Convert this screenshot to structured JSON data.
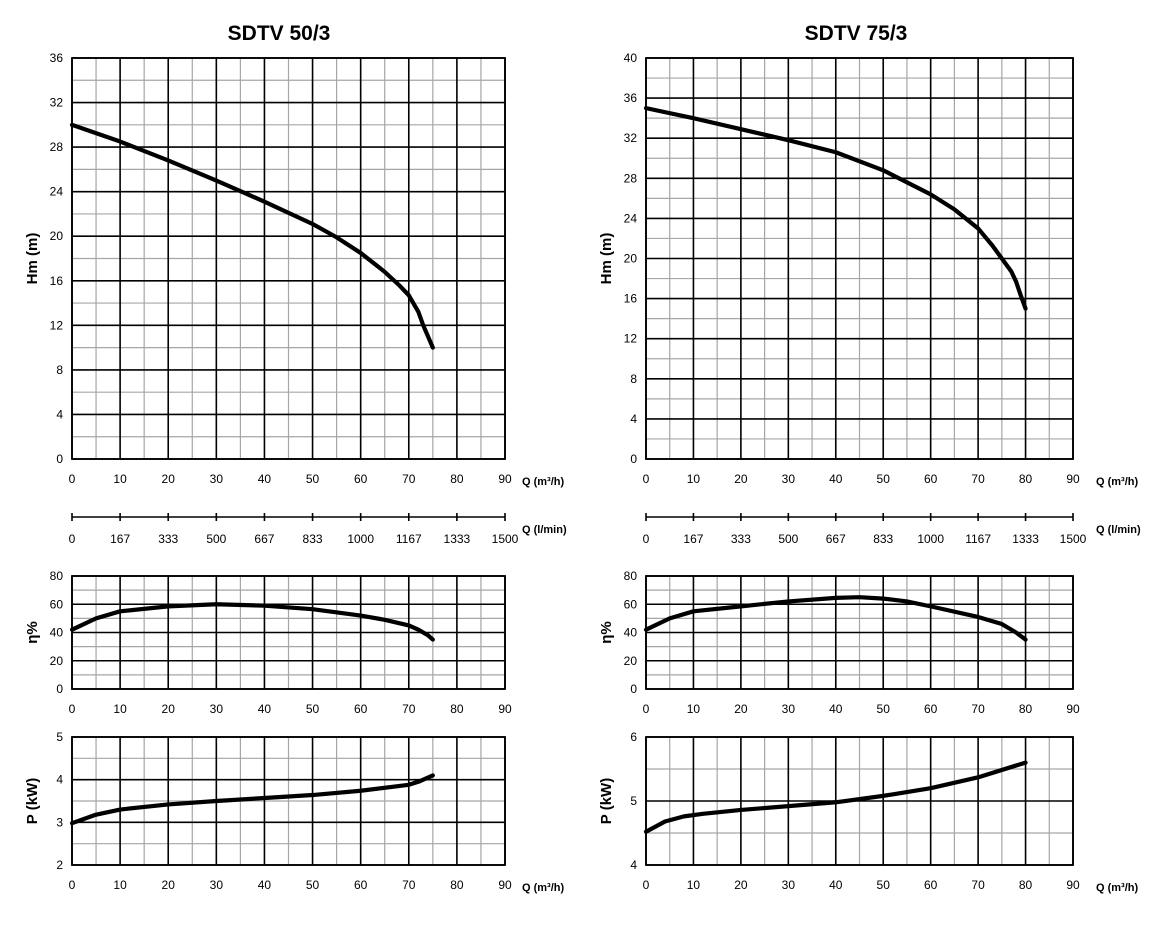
{
  "chart_data": [
    {
      "type": "line",
      "title": "SDTV 50/3",
      "panels": [
        {
          "id": "head",
          "ylabel": "Hm   (m)",
          "xlabel": "Q (m³/h)",
          "xlim": [
            0,
            90
          ],
          "ylim": [
            0,
            36
          ],
          "x_ticks": [
            "0",
            "10",
            "20",
            "30",
            "40",
            "50",
            "60",
            "70",
            "80",
            "90"
          ],
          "y_ticks": [
            "0",
            "4",
            "8",
            "12",
            "16",
            "20",
            "24",
            "28",
            "32",
            "36"
          ],
          "grid": true,
          "x": [
            0,
            10,
            20,
            30,
            40,
            50,
            55,
            60,
            65,
            68,
            70,
            72,
            73,
            74,
            75
          ],
          "y": [
            30,
            28.5,
            26.8,
            25,
            23.1,
            21.1,
            19.9,
            18.5,
            16.8,
            15.6,
            14.7,
            13.2,
            12,
            11,
            10
          ]
        },
        {
          "id": "flow-lmin",
          "xlabel": "Q (l/min)",
          "x_ticks": [
            "0",
            "167",
            "333",
            "500",
            "667",
            "833",
            "1000",
            "1167",
            "1333",
            "1500"
          ]
        },
        {
          "id": "efficiency",
          "ylabel": "η%",
          "xlim": [
            0,
            90
          ],
          "ylim": [
            0,
            80
          ],
          "x_ticks": [
            "0",
            "10",
            "20",
            "30",
            "40",
            "50",
            "60",
            "70",
            "80",
            "90"
          ],
          "y_ticks": [
            "0",
            "20",
            "40",
            "60",
            "80"
          ],
          "grid": true,
          "x": [
            0,
            5,
            10,
            20,
            30,
            40,
            50,
            60,
            65,
            70,
            72,
            74,
            75
          ],
          "y": [
            42,
            50,
            55,
            58.5,
            60,
            59,
            56.5,
            52,
            49,
            45,
            42,
            38,
            35
          ]
        },
        {
          "id": "power",
          "ylabel": "P   (kW)",
          "xlabel": "Q (m³/h)",
          "xlim": [
            0,
            90
          ],
          "ylim": [
            2,
            5
          ],
          "x_ticks": [
            "0",
            "10",
            "20",
            "30",
            "40",
            "50",
            "60",
            "70",
            "80",
            "90"
          ],
          "y_ticks": [
            "2",
            "3",
            "4",
            "5"
          ],
          "grid": true,
          "x": [
            0,
            5,
            10,
            20,
            30,
            40,
            50,
            60,
            70,
            72,
            74,
            75
          ],
          "y": [
            2.98,
            3.18,
            3.3,
            3.42,
            3.5,
            3.57,
            3.64,
            3.74,
            3.88,
            3.95,
            4.05,
            4.1
          ]
        }
      ]
    },
    {
      "type": "line",
      "title": "SDTV 75/3",
      "panels": [
        {
          "id": "head",
          "ylabel": "Hm   (m)",
          "xlabel": "Q (m³/h)",
          "xlim": [
            0,
            90
          ],
          "ylim": [
            0,
            40
          ],
          "x_ticks": [
            "0",
            "10",
            "20",
            "30",
            "40",
            "50",
            "60",
            "70",
            "80",
            "90"
          ],
          "y_ticks": [
            "0",
            "4",
            "8",
            "12",
            "16",
            "20",
            "24",
            "28",
            "32",
            "36",
            "40"
          ],
          "grid": true,
          "x": [
            0,
            10,
            20,
            30,
            40,
            50,
            60,
            65,
            70,
            73,
            75,
            77,
            78,
            79,
            80
          ],
          "y": [
            35,
            34,
            32.9,
            31.8,
            30.6,
            28.8,
            26.4,
            24.9,
            23,
            21.3,
            20,
            18.7,
            17.7,
            16.3,
            15
          ]
        },
        {
          "id": "flow-lmin",
          "xlabel": "Q (l/min)",
          "x_ticks": [
            "0",
            "167",
            "333",
            "500",
            "667",
            "833",
            "1000",
            "1167",
            "1333",
            "1500"
          ]
        },
        {
          "id": "efficiency",
          "ylabel": "η%",
          "xlim": [
            0,
            90
          ],
          "ylim": [
            0,
            80
          ],
          "x_ticks": [
            "0",
            "10",
            "20",
            "30",
            "40",
            "50",
            "60",
            "70",
            "80",
            "90"
          ],
          "y_ticks": [
            "0",
            "20",
            "40",
            "60",
            "80"
          ],
          "grid": true,
          "x": [
            0,
            5,
            10,
            20,
            30,
            40,
            45,
            50,
            55,
            60,
            70,
            75,
            78,
            80
          ],
          "y": [
            42,
            50,
            55,
            58.5,
            62,
            64.5,
            65,
            64,
            62,
            58.5,
            51,
            46,
            40,
            35
          ]
        },
        {
          "id": "power",
          "ylabel": "P   (kW)",
          "xlabel": "Q (m³/h)",
          "xlim": [
            0,
            90
          ],
          "ylim": [
            4,
            6
          ],
          "x_ticks": [
            "0",
            "10",
            "20",
            "30",
            "40",
            "50",
            "60",
            "70",
            "80",
            "90"
          ],
          "y_ticks": [
            "4",
            "5",
            "6"
          ],
          "grid": true,
          "x": [
            0,
            4,
            8,
            12,
            20,
            30,
            40,
            50,
            60,
            70,
            80
          ],
          "y": [
            4.52,
            4.68,
            4.76,
            4.8,
            4.86,
            4.92,
            4.98,
            5.08,
            5.2,
            5.37,
            5.6
          ]
        }
      ]
    }
  ]
}
